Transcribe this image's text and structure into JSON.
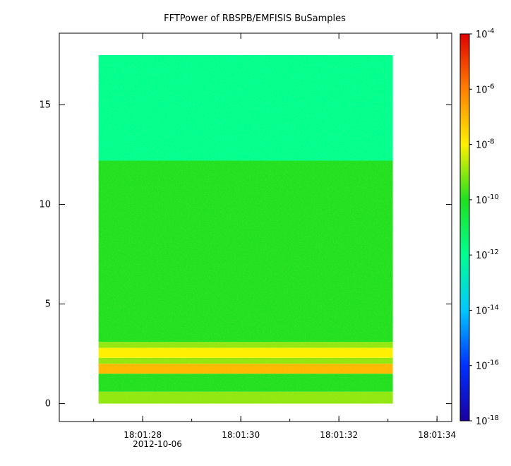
{
  "chart_data": {
    "type": "heatmap",
    "title": "FFTPower of RBSPB/EMFISIS  BuSamples",
    "xlabel": "",
    "ylabel": "",
    "x_tick_labels": [
      "18:01:28",
      "18:01:30",
      "18:01:32",
      "18:01:34"
    ],
    "x_date_label": "2012-10-06",
    "x_tick_values": [
      "18:01:28",
      "18:01:30",
      "18:01:32",
      "18:01:34"
    ],
    "xlim": [
      "18:01:26.3",
      "18:01:34.3"
    ],
    "y_ticks": [
      0,
      5,
      10,
      15
    ],
    "ylim": [
      -0.9,
      18.6
    ],
    "data_extent": {
      "x": [
        "18:01:27.1",
        "18:01:33.1"
      ],
      "y": [
        0,
        17.5
      ]
    },
    "colorbar": {
      "scale": "log",
      "range": [
        1e-18,
        0.0001
      ],
      "tick_labels": [
        "10",
        "10",
        "10",
        "10",
        "10",
        "10",
        "10",
        "10"
      ],
      "tick_exponents": [
        "-4",
        "-6",
        "-8",
        "-10",
        "-12",
        "-14",
        "-16",
        "-18"
      ],
      "tick_values": [
        0.0001,
        1e-06,
        1e-08,
        1e-10,
        1e-12,
        1e-14,
        1e-16,
        1e-18
      ],
      "colors": [
        "#1a00a0",
        "#0030ff",
        "#00c8ff",
        "#00ff90",
        "#20e020",
        "#fff000",
        "#ff8000",
        "#e00000"
      ]
    },
    "frequency_bands": [
      {
        "y_range": [
          0,
          0.6
        ],
        "level": 1e-09
      },
      {
        "y_range": [
          0.6,
          1.5
        ],
        "level": 1e-10
      },
      {
        "y_range": [
          1.5,
          2.0
        ],
        "level": 1e-07
      },
      {
        "y_range": [
          2.0,
          2.3
        ],
        "level": 1e-09
      },
      {
        "y_range": [
          2.3,
          2.8
        ],
        "level": 1e-08
      },
      {
        "y_range": [
          2.8,
          3.1
        ],
        "level": 1e-09
      },
      {
        "y_range": [
          3.1,
          12.2
        ],
        "level": 1e-10
      },
      {
        "y_range": [
          12.2,
          17.5
        ],
        "level": 1e-12
      }
    ],
    "grid": false,
    "legend": "colorbar-right"
  }
}
